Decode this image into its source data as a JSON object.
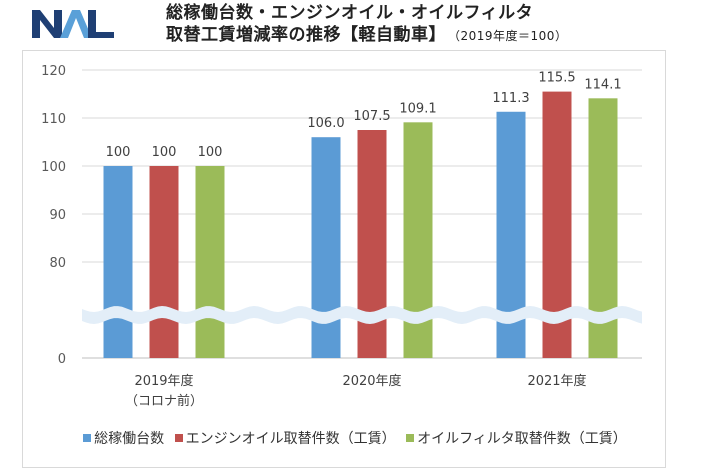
{
  "logo": {
    "text": "NAL",
    "colors": {
      "dark": "#1f3f74",
      "light": "#5aa0d8"
    }
  },
  "title": {
    "line1": "総稼働台数・エンジンオイル・オイルフィルタ",
    "line2": "取替工賃増減率の推移【軽自動車】",
    "subtitle": "（2019年度＝100）"
  },
  "chart_data": {
    "type": "bar",
    "title": "総稼働台数・エンジンオイル・オイルフィルタ取替工賃増減率の推移【軽自動車】（2019年度＝100）",
    "categories": [
      "2019年度\n（コロナ前）",
      "2020年度",
      "2021年度"
    ],
    "category_lines": [
      [
        "2019年度",
        "（コロナ前）"
      ],
      [
        "2020年度"
      ],
      [
        "2021年度"
      ]
    ],
    "series": [
      {
        "name": "総稼働台数",
        "color": "#5b9bd5",
        "values": [
          100,
          106.0,
          111.3
        ],
        "labels": [
          "100",
          "106.0",
          "111.3"
        ]
      },
      {
        "name": "エンジンオイル取替件数（工賃）",
        "color": "#c0504d",
        "values": [
          100,
          107.5,
          115.5
        ],
        "labels": [
          "100",
          "107.5",
          "115.5"
        ]
      },
      {
        "name": "オイルフィルタ取替件数（工賃）",
        "color": "#9bbb59",
        "values": [
          100,
          109.1,
          114.1
        ],
        "labels": [
          "100",
          "109.1",
          "114.1"
        ]
      }
    ],
    "yticks": [
      "0",
      "80",
      "90",
      "100",
      "110",
      "120"
    ],
    "ylim": [
      0,
      120
    ],
    "axis_break": {
      "from": 0,
      "to": 80
    },
    "grid": true,
    "legend": "bottom",
    "xlabel": "",
    "ylabel": ""
  }
}
